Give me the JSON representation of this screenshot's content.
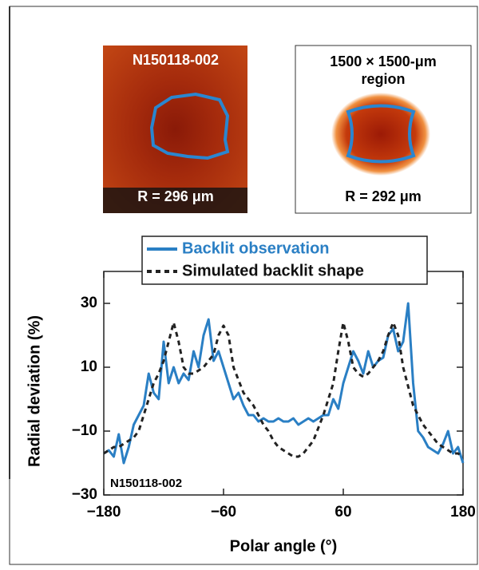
{
  "panels": [
    {
      "title_lines": [
        "N150118-002"
      ],
      "label": "R = 296 μm"
    },
    {
      "title_lines": [
        "1500 × 1500-μm",
        "region"
      ],
      "label": "R = 292 μm"
    }
  ],
  "chart_data": {
    "type": "line",
    "x_label": "Polar angle (°)",
    "y_label": "Radial deviation (%)",
    "annotation": "N150118-002",
    "x": [
      -180,
      -175,
      -170,
      -165,
      -160,
      -155,
      -150,
      -145,
      -140,
      -135,
      -130,
      -125,
      -120,
      -115,
      -110,
      -105,
      -100,
      -95,
      -90,
      -85,
      -80,
      -75,
      -70,
      -65,
      -60,
      -55,
      -50,
      -45,
      -40,
      -35,
      -30,
      -25,
      -20,
      -15,
      -10,
      -5,
      0,
      5,
      10,
      15,
      20,
      25,
      30,
      35,
      40,
      45,
      50,
      55,
      60,
      65,
      70,
      75,
      80,
      85,
      90,
      95,
      100,
      105,
      110,
      115,
      120,
      125,
      130,
      135,
      140,
      145,
      150,
      155,
      160,
      165,
      170,
      175,
      180
    ],
    "series": [
      {
        "name": "Backlit observation",
        "color": "#2a7fc4",
        "dash": false,
        "values": [
          -17,
          -16,
          -18,
          -11,
          -20,
          -15,
          -8,
          -5,
          -2,
          8,
          2,
          0,
          18,
          5,
          10,
          5,
          8,
          6,
          15,
          10,
          20,
          25,
          12,
          15,
          10,
          5,
          0,
          2,
          -2,
          -5,
          -5,
          -7,
          -6,
          -7,
          -7,
          -6,
          -7,
          -7,
          -6,
          -8,
          -7,
          -6,
          -7,
          -6,
          -5,
          -5,
          0,
          -3,
          5,
          10,
          15,
          12,
          8,
          15,
          10,
          12,
          13,
          20,
          22,
          15,
          18,
          30,
          5,
          -10,
          -12,
          -15,
          -16,
          -17,
          -14,
          -10,
          -17,
          -15,
          -20
        ]
      },
      {
        "name": "Simulated backlit shape",
        "color": "#222222",
        "dash": true,
        "values": [
          -17,
          -16,
          -15,
          -15,
          -14,
          -13,
          -12,
          -10,
          -5,
          0,
          5,
          8,
          12,
          18,
          24,
          18,
          10,
          8,
          8,
          9,
          10,
          12,
          14,
          20,
          23,
          20,
          10,
          6,
          2,
          0,
          -2,
          -5,
          -8,
          -10,
          -13,
          -15,
          -16,
          -17,
          -18,
          -18,
          -17,
          -15,
          -13,
          -9,
          -5,
          0,
          5,
          15,
          24,
          18,
          10,
          8,
          7,
          8,
          10,
          12,
          15,
          20,
          24,
          20,
          10,
          4,
          -2,
          -5,
          -8,
          -10,
          -12,
          -14,
          -15,
          -16,
          -17,
          -17,
          -18
        ]
      }
    ],
    "xlim": [
      -180,
      180
    ],
    "xticks": [
      {
        "value": -180,
        "label": "−180"
      },
      {
        "value": -60,
        "label": "−60"
      },
      60,
      180
    ],
    "ylim": [
      -30,
      40
    ],
    "yticks": [
      {
        "value": -30,
        "label": "−30"
      },
      {
        "value": -10,
        "label": "−10"
      },
      10,
      30
    ],
    "grid": false
  }
}
